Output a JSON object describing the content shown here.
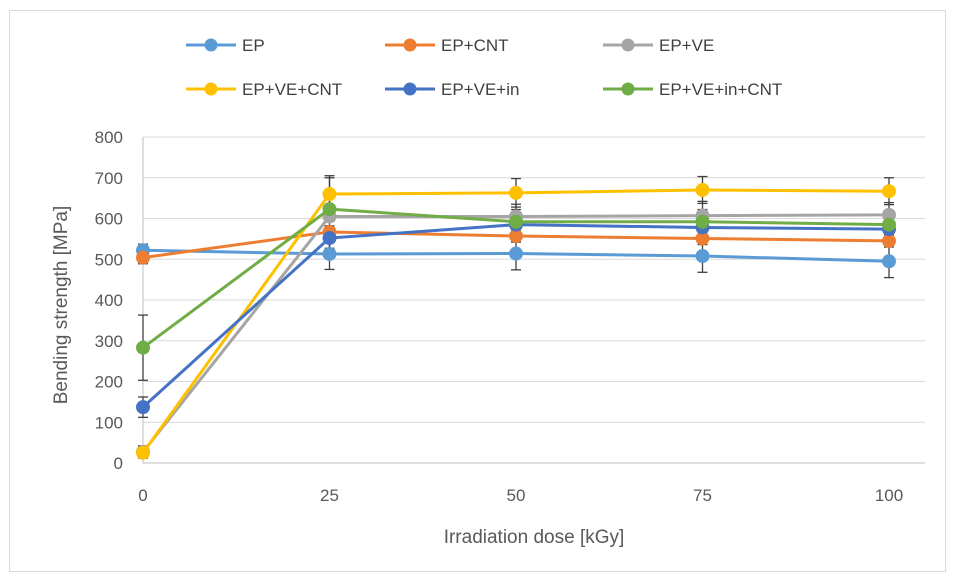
{
  "chart_data": {
    "type": "line",
    "title": "",
    "xlabel": "Irradiation dose [kGy]",
    "ylabel": "Bending strength [MPa]",
    "x": [
      0,
      25,
      50,
      75,
      100
    ],
    "x_tick_labels": [
      "0",
      "25",
      "50",
      "75",
      "100"
    ],
    "ylim": [
      0,
      800
    ],
    "y_ticks": [
      0,
      100,
      200,
      300,
      400,
      500,
      600,
      700,
      800
    ],
    "y_tick_labels": [
      "0",
      "100",
      "200",
      "300",
      "400",
      "500",
      "600",
      "700",
      "800"
    ],
    "grid": "horizontal",
    "legend_position": "top",
    "series": [
      {
        "name": "EP",
        "color": "#5B9BD5",
        "values": [
          522,
          513,
          514,
          508,
          495
        ],
        "error": [
          15,
          38,
          40,
          40,
          40
        ]
      },
      {
        "name": "EP+CNT",
        "color": "#ED7D31",
        "values": [
          504,
          567,
          557,
          551,
          545
        ],
        "error": [
          15,
          15,
          15,
          15,
          15
        ]
      },
      {
        "name": "EP+VE",
        "color": "#A5A5A5",
        "values": [
          27,
          605,
          605,
          607,
          609
        ],
        "error": [
          15,
          100,
          30,
          35,
          30
        ]
      },
      {
        "name": "EP+VE+CNT",
        "color": "#FFC000",
        "values": [
          25,
          660,
          663,
          670,
          667
        ],
        "error": [
          10,
          40,
          35,
          33,
          33
        ]
      },
      {
        "name": "EP+VE+in",
        "color": "#4472C4",
        "values": [
          137,
          552,
          585,
          578,
          574
        ],
        "error": [
          25,
          25,
          25,
          25,
          25
        ]
      },
      {
        "name": "EP+VE+in+CNT",
        "color": "#70AD47",
        "values": [
          283,
          623,
          592,
          592,
          585
        ],
        "error": [
          80,
          30,
          30,
          30,
          30
        ]
      }
    ]
  }
}
